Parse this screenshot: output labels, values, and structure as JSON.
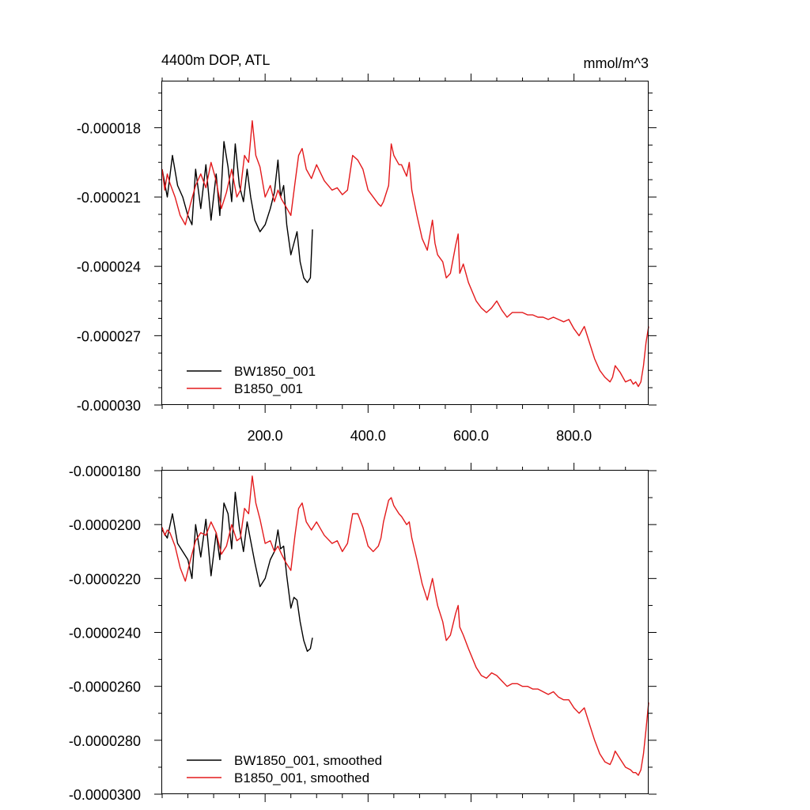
{
  "chart_data": [
    {
      "type": "line",
      "title": "4400m DOP, ATL",
      "units": "mmol/m^3",
      "xlabel": "",
      "ylabel": "",
      "xlim": [
        0,
        945
      ],
      "ylim": [
        -3e-05,
        -1.6e-05
      ],
      "xticks": [
        200,
        400,
        600,
        800
      ],
      "xtick_labels": [
        "200.0",
        "400.0",
        "600.0",
        "800.0"
      ],
      "yticks": [
        -1.8e-05,
        -2.1e-05,
        -2.4e-05,
        -2.7e-05,
        -3e-05
      ],
      "ytick_labels": [
        "-0.000018",
        "-0.000021",
        "-0.000024",
        "-0.000027",
        "-0.000030"
      ],
      "legend_position": "bottom-left",
      "series": [
        {
          "name": "BW1850_001",
          "color": "#000000",
          "x": [
            0,
            10,
            20,
            30,
            40,
            50,
            58,
            65,
            75,
            85,
            95,
            105,
            112,
            120,
            128,
            135,
            142,
            150,
            158,
            165,
            172,
            180,
            190,
            200,
            210,
            218,
            225,
            230,
            236,
            242,
            250,
            256,
            262,
            268,
            275,
            282,
            288,
            292
          ],
          "y": [
            -1.98e-05,
            -2.1e-05,
            -1.92e-05,
            -2.05e-05,
            -2.1e-05,
            -2.18e-05,
            -2.22e-05,
            -1.98e-05,
            -2.15e-05,
            -1.96e-05,
            -2.2e-05,
            -2e-05,
            -2.18e-05,
            -1.86e-05,
            -1.97e-05,
            -2.12e-05,
            -1.87e-05,
            -2.05e-05,
            -2.12e-05,
            -1.98e-05,
            -2.1e-05,
            -2.2e-05,
            -2.25e-05,
            -2.22e-05,
            -2.15e-05,
            -2.08e-05,
            -1.94e-05,
            -2.1e-05,
            -2.05e-05,
            -2.22e-05,
            -2.35e-05,
            -2.3e-05,
            -2.25e-05,
            -2.38e-05,
            -2.45e-05,
            -2.47e-05,
            -2.45e-05,
            -2.24e-05
          ]
        },
        {
          "name": "B1850_001",
          "color": "#e31a1c",
          "x": [
            0,
            5,
            10,
            15,
            25,
            35,
            45,
            55,
            65,
            75,
            85,
            95,
            105,
            115,
            125,
            135,
            145,
            152,
            160,
            168,
            175,
            182,
            190,
            200,
            210,
            218,
            225,
            232,
            240,
            250,
            258,
            265,
            272,
            280,
            290,
            300,
            315,
            330,
            340,
            350,
            360,
            370,
            380,
            390,
            400,
            410,
            420,
            425,
            430,
            440,
            445,
            450,
            460,
            465,
            475,
            480,
            485,
            495,
            505,
            515,
            525,
            530,
            535,
            545,
            552,
            560,
            570,
            575,
            578,
            585,
            595,
            610,
            620,
            630,
            640,
            650,
            660,
            670,
            680,
            690,
            700,
            710,
            720,
            730,
            740,
            750,
            760,
            770,
            780,
            790,
            800,
            810,
            815,
            820,
            830,
            840,
            850,
            860,
            870,
            875,
            880,
            890,
            900,
            910,
            915,
            920,
            925,
            930,
            935,
            940,
            945
          ],
          "y": [
            -1.98e-05,
            -2.07e-05,
            -2e-05,
            -2.04e-05,
            -2.1e-05,
            -2.18e-05,
            -2.22e-05,
            -2.13e-05,
            -2.05e-05,
            -2e-05,
            -2.06e-05,
            -1.95e-05,
            -2.03e-05,
            -2.15e-05,
            -2.08e-05,
            -1.98e-05,
            -2.1e-05,
            -2.07e-05,
            -1.92e-05,
            -1.95e-05,
            -1.77e-05,
            -1.92e-05,
            -1.97e-05,
            -2.1e-05,
            -2.05e-05,
            -2.12e-05,
            -2.07e-05,
            -2.11e-05,
            -2.14e-05,
            -2.18e-05,
            -2.04e-05,
            -1.92e-05,
            -1.89e-05,
            -1.98e-05,
            -2.02e-05,
            -1.96e-05,
            -2.03e-05,
            -2.07e-05,
            -2.06e-05,
            -2.09e-05,
            -2.07e-05,
            -1.92e-05,
            -1.94e-05,
            -1.98e-05,
            -2.07e-05,
            -2.1e-05,
            -2.13e-05,
            -2.14e-05,
            -2.12e-05,
            -2.05e-05,
            -1.87e-05,
            -1.92e-05,
            -1.96e-05,
            -1.96e-05,
            -2.01e-05,
            -1.95e-05,
            -2.07e-05,
            -2.18e-05,
            -2.28e-05,
            -2.33e-05,
            -2.2e-05,
            -2.3e-05,
            -2.35e-05,
            -2.38e-05,
            -2.45e-05,
            -2.43e-05,
            -2.31e-05,
            -2.26e-05,
            -2.43e-05,
            -2.39e-05,
            -2.47e-05,
            -2.55e-05,
            -2.58e-05,
            -2.6e-05,
            -2.58e-05,
            -2.55e-05,
            -2.59e-05,
            -2.62e-05,
            -2.6e-05,
            -2.6e-05,
            -2.6e-05,
            -2.61e-05,
            -2.61e-05,
            -2.62e-05,
            -2.62e-05,
            -2.63e-05,
            -2.62e-05,
            -2.63e-05,
            -2.64e-05,
            -2.63e-05,
            -2.67e-05,
            -2.7e-05,
            -2.68e-05,
            -2.66e-05,
            -2.73e-05,
            -2.8e-05,
            -2.85e-05,
            -2.88e-05,
            -2.9e-05,
            -2.88e-05,
            -2.83e-05,
            -2.86e-05,
            -2.9e-05,
            -2.89e-05,
            -2.91e-05,
            -2.9e-05,
            -2.92e-05,
            -2.9e-05,
            -2.83e-05,
            -2.73e-05,
            -2.66e-05
          ]
        }
      ]
    },
    {
      "type": "line",
      "title": "",
      "xlabel": "",
      "ylabel": "",
      "xlim": [
        0,
        945
      ],
      "ylim": [
        -3e-05,
        -1.8e-05
      ],
      "xticks": [
        200,
        400,
        600,
        800
      ],
      "xtick_labels": [],
      "yticks": [
        -1.8e-05,
        -2e-05,
        -2.2e-05,
        -2.4e-05,
        -2.6e-05,
        -2.8e-05,
        -3e-05
      ],
      "ytick_labels": [
        "-0.0000180",
        "-0.0000200",
        "-0.0000220",
        "-0.0000240",
        "-0.0000260",
        "-0.0000280",
        "-0.0000300"
      ],
      "legend_position": "bottom-left",
      "series": [
        {
          "name": "BW1850_001, smoothed",
          "color": "#000000",
          "x": [
            0,
            10,
            20,
            30,
            40,
            50,
            58,
            65,
            75,
            85,
            95,
            105,
            112,
            120,
            128,
            135,
            142,
            150,
            158,
            165,
            172,
            180,
            190,
            200,
            210,
            218,
            225,
            230,
            236,
            242,
            250,
            256,
            262,
            268,
            275,
            282,
            288,
            292
          ],
          "y": [
            -2.02e-05,
            -2.05e-05,
            -1.96e-05,
            -2.07e-05,
            -2.1e-05,
            -2.13e-05,
            -2.2e-05,
            -2e-05,
            -2.12e-05,
            -1.98e-05,
            -2.19e-05,
            -2.03e-05,
            -2.13e-05,
            -1.92e-05,
            -1.96e-05,
            -2.09e-05,
            -1.88e-05,
            -2.01e-05,
            -2.1e-05,
            -1.99e-05,
            -2.06e-05,
            -2.14e-05,
            -2.23e-05,
            -2.2e-05,
            -2.13e-05,
            -2.1e-05,
            -2.02e-05,
            -2.09e-05,
            -2.08e-05,
            -2.19e-05,
            -2.31e-05,
            -2.27e-05,
            -2.28e-05,
            -2.36e-05,
            -2.43e-05,
            -2.47e-05,
            -2.46e-05,
            -2.42e-05
          ]
        },
        {
          "name": "B1850_001, smoothed",
          "color": "#e31a1c",
          "x": [
            0,
            5,
            10,
            15,
            25,
            35,
            45,
            55,
            65,
            75,
            85,
            95,
            105,
            115,
            125,
            135,
            145,
            152,
            160,
            168,
            175,
            182,
            190,
            200,
            210,
            218,
            225,
            232,
            240,
            250,
            258,
            265,
            272,
            280,
            290,
            300,
            315,
            330,
            340,
            350,
            360,
            370,
            380,
            390,
            400,
            410,
            420,
            425,
            430,
            440,
            445,
            450,
            460,
            465,
            475,
            480,
            485,
            495,
            505,
            515,
            525,
            530,
            535,
            545,
            552,
            560,
            570,
            575,
            578,
            585,
            595,
            610,
            620,
            630,
            640,
            650,
            660,
            670,
            680,
            690,
            700,
            710,
            720,
            730,
            740,
            750,
            760,
            770,
            780,
            790,
            800,
            810,
            815,
            820,
            830,
            840,
            850,
            860,
            870,
            875,
            880,
            890,
            900,
            910,
            915,
            920,
            925,
            930,
            935,
            940,
            945
          ],
          "y": [
            -2.01e-05,
            -2.04e-05,
            -2.02e-05,
            -2.03e-05,
            -2.08e-05,
            -2.16e-05,
            -2.21e-05,
            -2.13e-05,
            -2.06e-05,
            -2.03e-05,
            -2.04e-05,
            -1.99e-05,
            -2.03e-05,
            -2.11e-05,
            -2.08e-05,
            -2e-05,
            -2.06e-05,
            -2.05e-05,
            -1.94e-05,
            -1.96e-05,
            -1.82e-05,
            -1.92e-05,
            -1.98e-05,
            -2.07e-05,
            -2.06e-05,
            -2.1e-05,
            -2.08e-05,
            -2.11e-05,
            -2.14e-05,
            -2.17e-05,
            -2.04e-05,
            -1.94e-05,
            -1.92e-05,
            -1.99e-05,
            -2.02e-05,
            -1.99e-05,
            -2.04e-05,
            -2.07e-05,
            -2.06e-05,
            -2.1e-05,
            -2.07e-05,
            -1.96e-05,
            -1.96e-05,
            -2.01e-05,
            -2.08e-05,
            -2.1e-05,
            -2.08e-05,
            -2.05e-05,
            -1.99e-05,
            -1.91e-05,
            -1.9e-05,
            -1.93e-05,
            -1.96e-05,
            -1.97e-05,
            -2e-05,
            -1.99e-05,
            -2.05e-05,
            -2.13e-05,
            -2.22e-05,
            -2.28e-05,
            -2.2e-05,
            -2.25e-05,
            -2.3e-05,
            -2.36e-05,
            -2.43e-05,
            -2.41e-05,
            -2.33e-05,
            -2.3e-05,
            -2.38e-05,
            -2.41e-05,
            -2.46e-05,
            -2.53e-05,
            -2.56e-05,
            -2.57e-05,
            -2.55e-05,
            -2.56e-05,
            -2.58e-05,
            -2.6e-05,
            -2.59e-05,
            -2.59e-05,
            -2.6e-05,
            -2.6e-05,
            -2.61e-05,
            -2.61e-05,
            -2.62e-05,
            -2.63e-05,
            -2.62e-05,
            -2.64e-05,
            -2.65e-05,
            -2.65e-05,
            -2.68e-05,
            -2.7e-05,
            -2.69e-05,
            -2.68e-05,
            -2.74e-05,
            -2.8e-05,
            -2.85e-05,
            -2.88e-05,
            -2.89e-05,
            -2.87e-05,
            -2.84e-05,
            -2.87e-05,
            -2.9e-05,
            -2.91e-05,
            -2.92e-05,
            -2.92e-05,
            -2.93e-05,
            -2.91e-05,
            -2.85e-05,
            -2.76e-05,
            -2.66e-05
          ]
        }
      ]
    }
  ]
}
